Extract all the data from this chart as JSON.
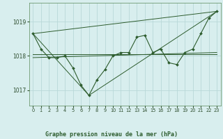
{
  "background_color": "#d8eeee",
  "grid_color": "#b8d8d8",
  "line_color": "#2d5c2d",
  "marker_color": "#2d5c2d",
  "title": "Graphe pression niveau de la mer (hPa)",
  "xlim": [
    -0.5,
    23.5
  ],
  "ylim": [
    1016.55,
    1019.55
  ],
  "yticks": [
    1017,
    1018,
    1019
  ],
  "xticks": [
    0,
    1,
    2,
    3,
    4,
    5,
    6,
    7,
    8,
    9,
    10,
    11,
    12,
    13,
    14,
    15,
    16,
    17,
    18,
    19,
    20,
    21,
    22,
    23
  ],
  "main_x": [
    0,
    1,
    2,
    3,
    4,
    5,
    6,
    7,
    8,
    9,
    10,
    11,
    12,
    13,
    14,
    15,
    16,
    17,
    18,
    19,
    20,
    21,
    22,
    23
  ],
  "main_y": [
    1018.65,
    1018.2,
    1017.95,
    1017.95,
    1018.0,
    1017.65,
    1017.15,
    1016.85,
    1017.3,
    1017.6,
    1018.0,
    1018.1,
    1018.1,
    1018.55,
    1018.6,
    1018.1,
    1018.2,
    1017.8,
    1017.75,
    1018.1,
    1018.2,
    1018.65,
    1019.1,
    1019.3
  ],
  "straight_lines": [
    {
      "x": [
        0,
        23
      ],
      "y": [
        1018.65,
        1019.3
      ]
    },
    {
      "x": [
        0,
        7,
        23
      ],
      "y": [
        1018.65,
        1016.85,
        1019.3
      ]
    },
    {
      "x": [
        0,
        23
      ],
      "y": [
        1018.05,
        1018.05
      ]
    },
    {
      "x": [
        0,
        23
      ],
      "y": [
        1017.95,
        1018.1
      ]
    }
  ]
}
